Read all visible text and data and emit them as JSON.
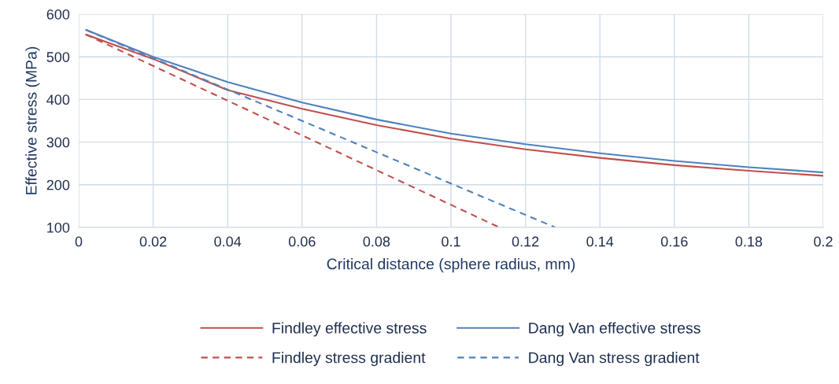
{
  "chart_data": {
    "type": "line",
    "xlabel": "Critical distance (sphere radius, mm)",
    "ylabel": "Effective stress (MPa)",
    "xlim": [
      0,
      0.2
    ],
    "ylim": [
      100,
      600
    ],
    "xticks": [
      0,
      0.02,
      0.04,
      0.06,
      0.08,
      0.1,
      0.12,
      0.14,
      0.16,
      0.18,
      0.2
    ],
    "yticks": [
      100,
      200,
      300,
      400,
      500,
      600
    ],
    "grid": true,
    "legend": "bottom",
    "marker": "none",
    "series": [
      {
        "name": "Findley effective stress",
        "color": "#c0504d",
        "line_style": "solid",
        "x": [
          0.002,
          0.02,
          0.04,
          0.06,
          0.08,
          0.1,
          0.12,
          0.14,
          0.16,
          0.18,
          0.2
        ],
        "values": [
          552,
          495,
          422,
          378,
          340,
          308,
          283,
          263,
          246,
          233,
          221
        ]
      },
      {
        "name": "Dang Van effective stress",
        "color": "#4f81bd",
        "line_style": "solid",
        "x": [
          0.002,
          0.02,
          0.04,
          0.06,
          0.08,
          0.1,
          0.12,
          0.14,
          0.16,
          0.18,
          0.2
        ],
        "values": [
          563,
          500,
          441,
          393,
          353,
          320,
          295,
          274,
          256,
          241,
          229
        ]
      },
      {
        "name": "Findley stress gradient",
        "color": "#c0504d",
        "line_style": "dashed",
        "x": [
          0.002,
          0.113
        ],
        "values": [
          552,
          100
        ]
      },
      {
        "name": "Dang Van stress gradient",
        "color": "#4f81bd",
        "line_style": "dashed",
        "x": [
          0.002,
          0.128
        ],
        "values": [
          563,
          100
        ]
      }
    ]
  }
}
